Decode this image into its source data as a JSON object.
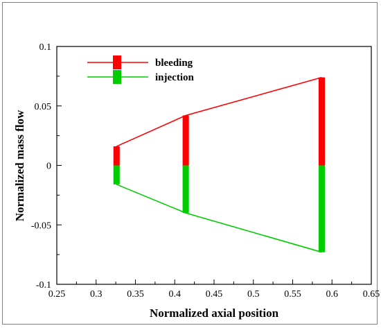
{
  "chart_data": {
    "type": "bar",
    "xlabel": "Normalized axial position",
    "ylabel": "Normalized mass flow",
    "xlim": [
      0.25,
      0.65
    ],
    "ylim": [
      -0.1,
      0.1
    ],
    "xticks": [
      0.25,
      0.3,
      0.35,
      0.4,
      0.45,
      0.5,
      0.55,
      0.6,
      0.65
    ],
    "xtick_labels": [
      "0.25",
      "0.3",
      "0.35",
      "0.4",
      "0.45",
      "0.5",
      "0.55",
      "0.6",
      "0.65"
    ],
    "yticks": [
      0.1,
      0.05,
      0,
      -0.05,
      -0.1
    ],
    "ytick_labels": [
      "0.1",
      "0.05",
      "0",
      "-0.05",
      "-0.1"
    ],
    "x": [
      0.326,
      0.414,
      0.587
    ],
    "series": [
      {
        "name": "bleeding",
        "color": "#ff0000",
        "values": [
          0.016,
          0.042,
          0.074
        ]
      },
      {
        "name": "injection",
        "color": "#00cc00",
        "values": [
          -0.016,
          -0.04,
          -0.073
        ]
      }
    ],
    "bar_width_units": 0.008,
    "legend_position": "top-left",
    "grid": false
  }
}
